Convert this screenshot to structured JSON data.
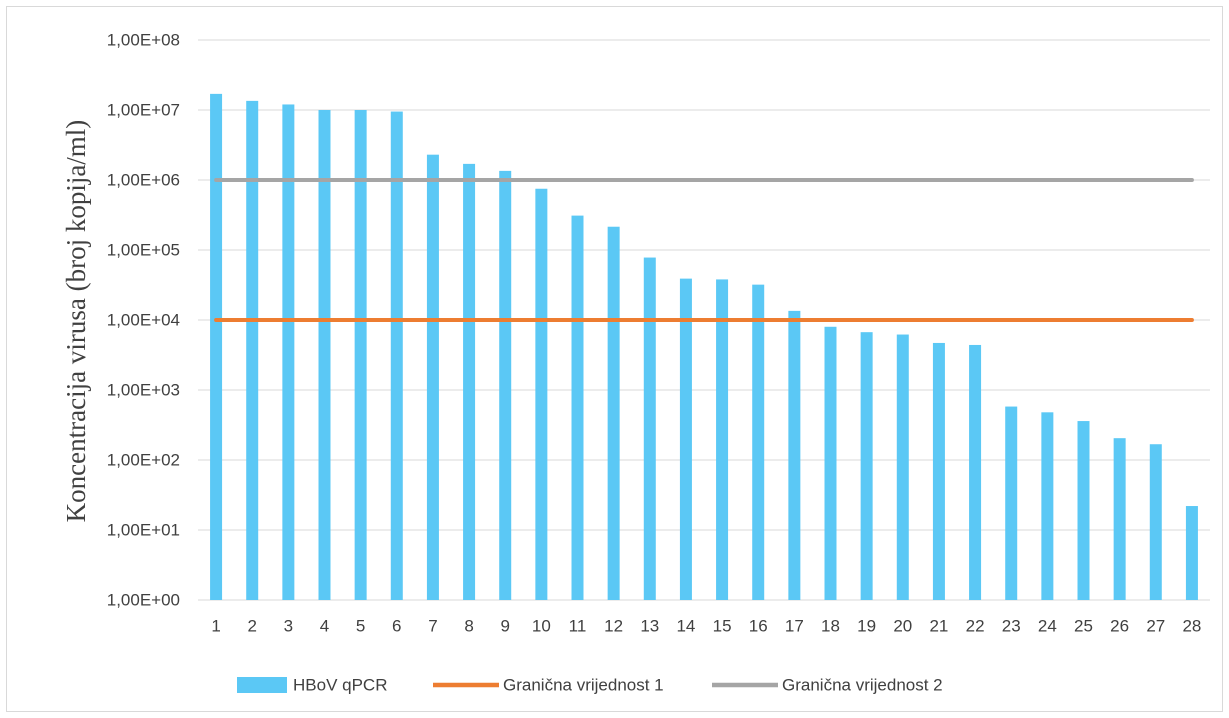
{
  "chart_data": {
    "type": "bar",
    "ylabel": "Koncentracija virusa (broj kopija/ml)",
    "xlabel": "",
    "yscale": "log",
    "ylim": [
      1,
      100000000
    ],
    "yticks": [
      1,
      10,
      100,
      1000,
      10000,
      100000,
      1000000,
      10000000,
      100000000
    ],
    "ytick_labels": [
      "1,00E+00",
      "1,00E+01",
      "1,00E+02",
      "1,00E+03",
      "1,00E+04",
      "1,00E+05",
      "1,00E+06",
      "1,00E+07",
      "1,00E+08"
    ],
    "categories": [
      "1",
      "2",
      "3",
      "4",
      "5",
      "6",
      "7",
      "8",
      "9",
      "10",
      "11",
      "12",
      "13",
      "14",
      "15",
      "16",
      "17",
      "18",
      "19",
      "20",
      "21",
      "22",
      "23",
      "24",
      "25",
      "26",
      "27",
      "28"
    ],
    "series": [
      {
        "name": "HBoV qPCR",
        "kind": "bar",
        "color": "#5bc8f5",
        "values": [
          17000000,
          13500000,
          12000000,
          10000000,
          10000000,
          9500000,
          2300000,
          1700000,
          1350000,
          750000,
          310000,
          215000,
          78000,
          39000,
          38000,
          32000,
          13500,
          8000,
          6700,
          6200,
          4700,
          4400,
          580,
          480,
          360,
          205,
          168,
          22
        ]
      },
      {
        "name": "Granična vrijednost 1",
        "kind": "line",
        "color": "#ed7d31",
        "values": [
          10000,
          10000,
          10000,
          10000,
          10000,
          10000,
          10000,
          10000,
          10000,
          10000,
          10000,
          10000,
          10000,
          10000,
          10000,
          10000,
          10000,
          10000,
          10000,
          10000,
          10000,
          10000,
          10000,
          10000,
          10000,
          10000,
          10000,
          10000
        ]
      },
      {
        "name": "Granična vrijednost 2",
        "kind": "line",
        "color": "#a5a5a5",
        "values": [
          1000000,
          1000000,
          1000000,
          1000000,
          1000000,
          1000000,
          1000000,
          1000000,
          1000000,
          1000000,
          1000000,
          1000000,
          1000000,
          1000000,
          1000000,
          1000000,
          1000000,
          1000000,
          1000000,
          1000000,
          1000000,
          1000000,
          1000000,
          1000000,
          1000000,
          1000000,
          1000000,
          1000000
        ]
      }
    ],
    "grid": "horizontal",
    "gridColor": "#d9d9d9",
    "legend": "bottom"
  }
}
